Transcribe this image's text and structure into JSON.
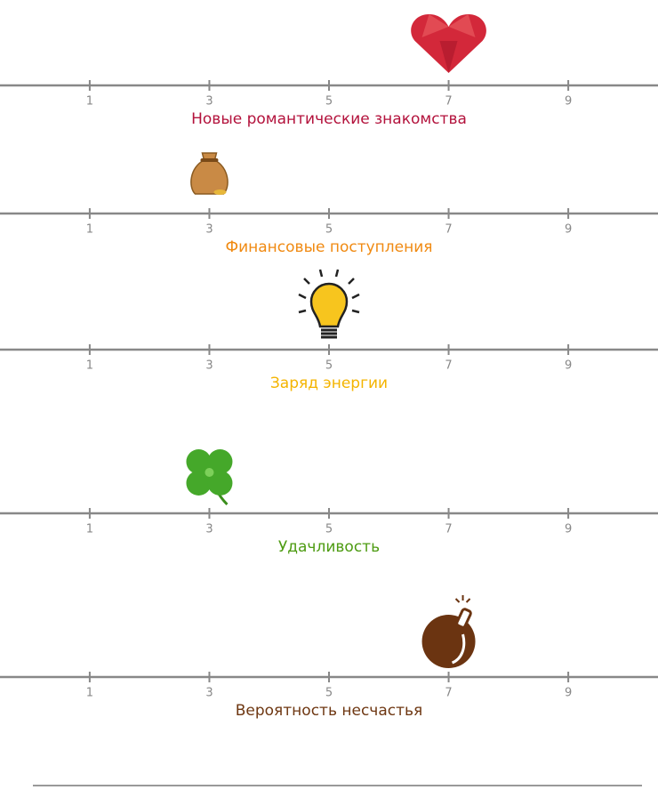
{
  "chart_data": [
    {
      "type": "scale",
      "title": "Новые романтические знакомства",
      "color": "#b3123c",
      "icon": "heart",
      "value": 7,
      "xlim": [
        -0.5,
        10.5
      ],
      "xticks": [
        1,
        3,
        5,
        7,
        9
      ]
    },
    {
      "type": "scale",
      "title": "Финансовые поступления",
      "color": "#f08a12",
      "icon": "bag",
      "value": 3,
      "xlim": [
        -0.5,
        10.5
      ],
      "xticks": [
        1,
        3,
        5,
        7,
        9
      ]
    },
    {
      "type": "scale",
      "title": "Заряд энергии",
      "color": "#f4b400",
      "icon": "bulb",
      "value": 5,
      "xlim": [
        -0.5,
        10.5
      ],
      "xticks": [
        1,
        3,
        5,
        7,
        9
      ]
    },
    {
      "type": "scale",
      "title": "Удачливость",
      "color": "#4d9b12",
      "icon": "clover",
      "value": 3,
      "xlim": [
        -0.5,
        10.5
      ],
      "xticks": [
        1,
        3,
        5,
        7,
        9
      ]
    },
    {
      "type": "scale",
      "title": "Вероятность несчастья",
      "color": "#6e3712",
      "icon": "bomb",
      "value": 7,
      "xlim": [
        -0.5,
        10.5
      ],
      "xticks": [
        1,
        3,
        5,
        7,
        9
      ]
    }
  ]
}
